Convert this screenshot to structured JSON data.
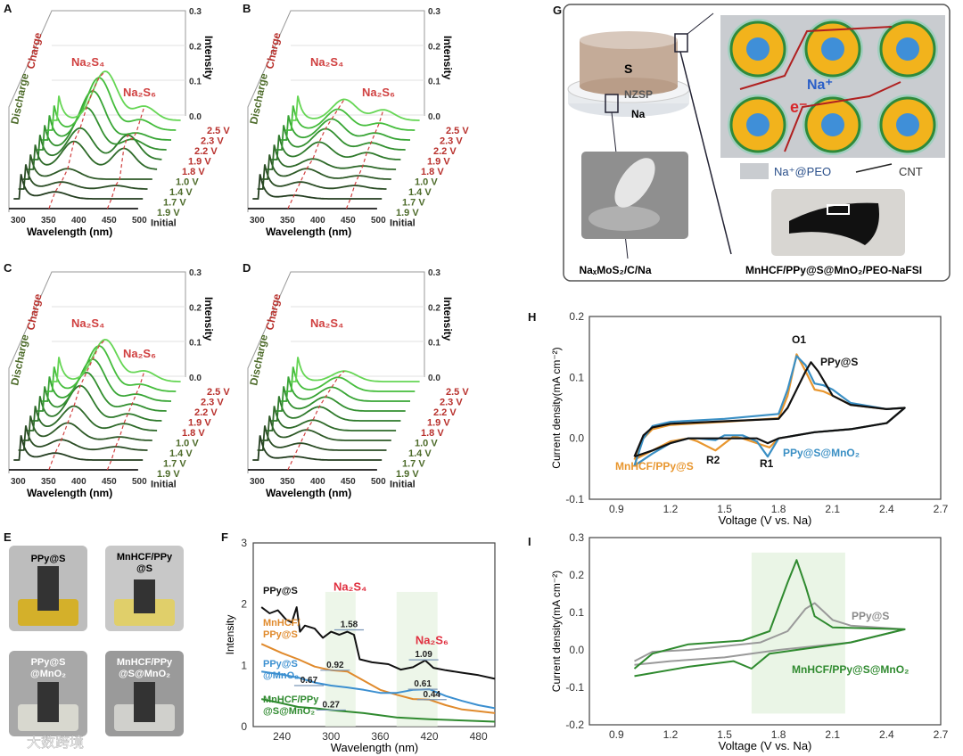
{
  "panels": {
    "A": "A",
    "B": "B",
    "C": "C",
    "D": "D",
    "E": "E",
    "F": "F",
    "G": "G",
    "H": "H",
    "I": "I"
  },
  "waterfall": {
    "intensity_label": "Intensity",
    "xlabel": "Wavelength (nm)",
    "z_ticks": [
      "0.0",
      "0.1",
      "0.2",
      "0.3"
    ],
    "x_ticks": [
      "300",
      "350",
      "400",
      "450",
      "500"
    ],
    "discharge": "Discharge",
    "charge": "Charge",
    "na2s4": "Na₂S₄",
    "na2s6": "Na₂S₆",
    "voltages": [
      "2.5 V",
      "2.3 V",
      "2.2 V",
      "1.9 V",
      "1.8 V",
      "1.0 V",
      "1.4 V",
      "1.7 V",
      "1.9 V",
      "Initial"
    ],
    "charge_color": "#b8302c",
    "discharge_color": "#4d6b2a",
    "spectra": {
      "A": {
        "show_s6": true,
        "p1": [
          0.0,
          0.02,
          0.02,
          0.03,
          0.08,
          0.09,
          0.12,
          0.14,
          0.15,
          0.14
        ],
        "p2": [
          0.0,
          0.0,
          0.01,
          0.0,
          0.06,
          0.07,
          0.03,
          0.02,
          0.03,
          0.04
        ]
      },
      "B": {
        "show_s6": true,
        "p1": [
          0.0,
          0.01,
          0.02,
          0.03,
          0.03,
          0.05,
          0.06,
          0.06,
          0.06,
          0.06
        ],
        "p2": [
          0.0,
          0.0,
          0.01,
          0.01,
          0.01,
          0.02,
          0.02,
          0.02,
          0.02,
          0.03
        ]
      },
      "C": {
        "show_s6": true,
        "p1": [
          0.0,
          0.02,
          0.03,
          0.05,
          0.07,
          0.1,
          0.11,
          0.12,
          0.13,
          0.12
        ],
        "p2": [
          0.0,
          0.0,
          0.01,
          0.01,
          0.02,
          0.02,
          0.02,
          0.02,
          0.02,
          0.03
        ]
      },
      "D": {
        "show_s6": false,
        "p1": [
          0.0,
          0.01,
          0.02,
          0.03,
          0.03,
          0.04,
          0.04,
          0.04,
          0.04,
          0.03
        ],
        "p2": [
          0,
          0,
          0,
          0,
          0,
          0,
          0,
          0,
          0,
          0
        ]
      }
    }
  },
  "E": {
    "photos": [
      "PPy@S",
      "MnHCF/PPy\n@S",
      "PPy@S\n@MnO₂",
      "MnHCF/PPy\n@S@MnO₂"
    ]
  },
  "G": {
    "s": "S",
    "nzsp": "NZSP",
    "na": "Na",
    "na_ion": "Na⁺",
    "electron": "e⁻",
    "legend_peo": "Na⁺@PEO",
    "legend_cnt": "CNT",
    "anode_label": "NaₓMoS₂/C/Na",
    "cathode_label": "MnHCF/PPy@S@MnO₂/PEO-NaFSI"
  },
  "watermark": "大数跨境",
  "chart_data": [
    {
      "panel": "F",
      "type": "line",
      "xlabel": "Wavelength (nm)",
      "ylabel": "Intensity",
      "xlim": [
        205,
        500
      ],
      "ylim": [
        0,
        3
      ],
      "x_ticks": [
        240,
        300,
        360,
        420,
        480
      ],
      "y_ticks": [
        0,
        1,
        2,
        3
      ],
      "peak_labels": {
        "s4": "Na₂S₄",
        "s6": "Na₂S₆"
      },
      "series": [
        {
          "name": "PPy@S",
          "color": "#111111",
          "x": [
            215,
            225,
            235,
            245,
            252,
            258,
            262,
            268,
            280,
            290,
            300,
            310,
            320,
            328,
            335,
            350,
            370,
            385,
            400,
            415,
            425,
            440,
            460,
            480,
            500
          ],
          "y": [
            1.95,
            1.85,
            1.9,
            1.75,
            1.7,
            1.95,
            1.55,
            1.65,
            1.6,
            1.45,
            1.55,
            1.5,
            1.55,
            1.5,
            1.1,
            1.05,
            1.02,
            0.93,
            0.97,
            1.08,
            0.96,
            0.92,
            0.88,
            0.84,
            0.78
          ]
        },
        {
          "name": "MnHCF/\nPPy@S",
          "color": "#e08a2c",
          "x": [
            215,
            240,
            260,
            280,
            300,
            320,
            340,
            360,
            380,
            400,
            420,
            440,
            460,
            480,
            500
          ],
          "y": [
            1.35,
            1.2,
            1.1,
            0.98,
            0.92,
            0.9,
            0.75,
            0.6,
            0.52,
            0.45,
            0.44,
            0.35,
            0.28,
            0.25,
            0.22
          ]
        },
        {
          "name": "PPy@S\n@MnO₂",
          "color": "#3b8fd0",
          "x": [
            215,
            240,
            260,
            280,
            300,
            320,
            340,
            360,
            380,
            400,
            420,
            440,
            460,
            480,
            500
          ],
          "y": [
            0.9,
            0.85,
            0.8,
            0.72,
            0.67,
            0.64,
            0.6,
            0.55,
            0.55,
            0.6,
            0.61,
            0.5,
            0.42,
            0.35,
            0.3
          ]
        },
        {
          "name": "MnHCF/PPy\n@S@MnO₂",
          "color": "#2f8a2f",
          "x": [
            215,
            240,
            260,
            280,
            300,
            340,
            380,
            420,
            460,
            500
          ],
          "y": [
            0.45,
            0.38,
            0.32,
            0.3,
            0.27,
            0.22,
            0.15,
            0.12,
            0.1,
            0.08
          ]
        }
      ],
      "annotations": [
        {
          "text": "1.58",
          "x": 322,
          "y": 1.58
        },
        {
          "text": "0.92",
          "x": 305,
          "y": 0.92
        },
        {
          "text": "0.67",
          "x": 273,
          "y": 0.67
        },
        {
          "text": "1.09",
          "x": 413,
          "y": 1.09
        },
        {
          "text": "0.61",
          "x": 412,
          "y": 0.61
        },
        {
          "text": "0.44",
          "x": 423,
          "y": 0.44
        },
        {
          "text": "0.27",
          "x": 300,
          "y": 0.27
        }
      ]
    },
    {
      "panel": "H",
      "type": "line",
      "xlabel": "Voltage (V vs. Na)",
      "ylabel": "Current density(mA cm⁻²)",
      "xlim": [
        0.75,
        2.7
      ],
      "ylim": [
        -0.1,
        0.2
      ],
      "x_ticks": [
        "0.9",
        "1.2",
        "1.5",
        "1.8",
        "2.1",
        "2.4",
        "2.7"
      ],
      "y_ticks": [
        "-0.1",
        "0.0",
        "0.1",
        "0.2"
      ],
      "peak_labels": {
        "O1": "O1",
        "R1": "R1",
        "R2": "R2"
      },
      "series": [
        {
          "name": "MnHCF/PPy@S",
          "color": "#e8962e",
          "x": [
            1.0,
            1.05,
            1.1,
            1.2,
            1.5,
            1.8,
            1.85,
            1.9,
            1.95,
            2.0,
            2.05,
            2.1,
            2.2,
            2.4,
            2.5,
            2.4,
            2.2,
            2.0,
            1.8,
            1.75,
            1.7,
            1.6,
            1.55,
            1.45,
            1.35,
            1.3,
            1.2,
            1.1,
            1.0
          ],
          "y": [
            -0.035,
            0.0,
            0.015,
            0.022,
            0.027,
            0.033,
            0.07,
            0.138,
            0.11,
            0.08,
            0.077,
            0.07,
            0.055,
            0.048,
            0.05,
            0.025,
            0.015,
            0.01,
            0.0,
            -0.015,
            -0.01,
            0.0,
            0.003,
            -0.02,
            -0.005,
            0.0,
            -0.005,
            -0.02,
            -0.035
          ]
        },
        {
          "name": "PPy@S@MnO₂",
          "color": "#3a8fc4",
          "x": [
            1.0,
            1.05,
            1.1,
            1.2,
            1.5,
            1.8,
            1.85,
            1.9,
            1.95,
            2.0,
            2.05,
            2.1,
            2.2,
            2.4,
            2.5,
            2.4,
            2.2,
            2.0,
            1.8,
            1.74,
            1.68,
            1.6,
            1.5,
            1.45,
            1.35,
            1.3,
            1.2,
            1.1,
            1.0
          ],
          "y": [
            -0.045,
            0.0,
            0.02,
            0.027,
            0.032,
            0.04,
            0.08,
            0.135,
            0.12,
            0.09,
            0.087,
            0.08,
            0.058,
            0.048,
            0.05,
            0.025,
            0.015,
            0.01,
            0.0,
            -0.03,
            -0.005,
            0.005,
            0.005,
            -0.003,
            0.0,
            0.0,
            -0.008,
            -0.025,
            -0.045
          ]
        },
        {
          "name": "PPy@S",
          "color": "#111111",
          "x": [
            1.0,
            1.05,
            1.1,
            1.2,
            1.5,
            1.8,
            1.85,
            1.9,
            1.95,
            1.98,
            2.02,
            2.1,
            2.2,
            2.4,
            2.5,
            2.4,
            2.2,
            2.0,
            1.8,
            1.74,
            1.68,
            1.5,
            1.3,
            1.2,
            1.1,
            1.0
          ],
          "y": [
            -0.03,
            0.005,
            0.018,
            0.024,
            0.028,
            0.032,
            0.05,
            0.08,
            0.11,
            0.125,
            0.11,
            0.07,
            0.055,
            0.048,
            0.05,
            0.025,
            0.015,
            0.01,
            0.0,
            -0.008,
            0.0,
            0.0,
            0.0,
            -0.008,
            -0.02,
            -0.03
          ]
        }
      ]
    },
    {
      "panel": "I",
      "type": "line",
      "xlabel": "Voltage (V vs. Na)",
      "ylabel": "Current density(mA cm⁻²)",
      "xlim": [
        0.75,
        2.7
      ],
      "ylim": [
        -0.2,
        0.3
      ],
      "x_ticks": [
        "0.9",
        "1.2",
        "1.5",
        "1.8",
        "2.1",
        "2.4",
        "2.7"
      ],
      "y_ticks": [
        "-0.2",
        "-0.1",
        "0.0",
        "0.1",
        "0.2",
        "0.3"
      ],
      "series": [
        {
          "name": "PPy@S",
          "color": "#9a9a9a",
          "x": [
            1.0,
            1.1,
            1.3,
            1.7,
            1.85,
            1.95,
            2.0,
            2.1,
            2.2,
            2.5,
            2.2,
            1.8,
            1.5,
            1.2,
            1.0
          ],
          "y": [
            -0.03,
            -0.005,
            0.0,
            0.02,
            0.05,
            0.11,
            0.125,
            0.08,
            0.065,
            0.055,
            0.02,
            0.0,
            -0.02,
            -0.03,
            -0.04
          ]
        },
        {
          "name": "MnHCF/PPy@S@MnO₂",
          "color": "#2f8a2f",
          "x": [
            1.0,
            1.1,
            1.3,
            1.6,
            1.75,
            1.85,
            1.9,
            1.95,
            2.0,
            2.1,
            2.5,
            2.2,
            1.9,
            1.75,
            1.65,
            1.55,
            1.3,
            1.0
          ],
          "y": [
            -0.05,
            -0.01,
            0.015,
            0.025,
            0.05,
            0.18,
            0.24,
            0.17,
            0.09,
            0.06,
            0.055,
            0.02,
            0.0,
            -0.01,
            -0.05,
            -0.03,
            -0.045,
            -0.07
          ]
        }
      ]
    }
  ]
}
